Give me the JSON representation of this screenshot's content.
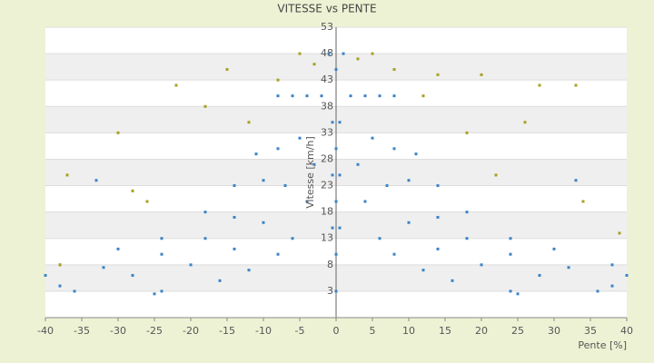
{
  "chart_data": {
    "type": "scatter",
    "title": "VITESSE vs PENTE",
    "x_label": "Pente [%]",
    "y_label": "Vitesse [km/h]",
    "xlim": [
      -40,
      40
    ],
    "ylim": [
      -2,
      53
    ],
    "xticks": [
      -40,
      -35,
      -30,
      -25,
      -20,
      -15,
      -10,
      -5,
      0,
      5,
      10,
      15,
      20,
      25,
      30,
      35,
      40
    ],
    "yticks": [
      3,
      8,
      13,
      18,
      23,
      28,
      33,
      38,
      43,
      48,
      53
    ],
    "grid": true,
    "bands": true,
    "series": [
      {
        "color": "#3b83c8",
        "x": [
          2,
          3,
          4,
          6,
          8,
          12,
          16,
          24,
          4,
          5,
          7,
          10,
          14,
          20,
          28,
          38,
          6,
          8,
          10,
          14,
          18,
          24,
          32,
          40,
          8,
          11,
          14,
          18,
          24,
          30,
          38,
          -2,
          -3,
          -4,
          -6,
          -8,
          -12,
          -16,
          -24,
          -4,
          -5,
          -7,
          -10,
          -14,
          -20,
          -28,
          -38,
          -6,
          -8,
          -10,
          -14,
          -18,
          -24,
          -32,
          -40,
          -8,
          -11,
          -14,
          -18,
          -24,
          -30,
          -38,
          0,
          0,
          0,
          0,
          0,
          0.5,
          0.5,
          0.5,
          -0.5,
          -0.5,
          -0.5,
          1,
          -1,
          36,
          -36,
          -25,
          25,
          -33,
          33
        ],
        "y": [
          40,
          27,
          20,
          13,
          10,
          7,
          5,
          3,
          40,
          32,
          23,
          16,
          11,
          8,
          6,
          4,
          40,
          30,
          24,
          17,
          13,
          10,
          7.5,
          6,
          40,
          29,
          23,
          18,
          13,
          11,
          8,
          40,
          27,
          20,
          13,
          10,
          7,
          5,
          3,
          40,
          32,
          23,
          16,
          11,
          8,
          6,
          4,
          40,
          30,
          24,
          17,
          13,
          10,
          7.5,
          6,
          40,
          29,
          23,
          18,
          13,
          11,
          8,
          3,
          10,
          20,
          30,
          45,
          15,
          25,
          35,
          15,
          25,
          35,
          48,
          48,
          3,
          3,
          2.5,
          2.5,
          24,
          24
        ]
      },
      {
        "color": "#a8a020",
        "x": [
          -37,
          -30,
          -22,
          -15,
          -8,
          -5,
          5,
          8,
          14,
          20,
          28,
          33,
          22,
          -26,
          34,
          39,
          -38,
          12,
          -12,
          18,
          -18,
          26,
          -28,
          3,
          -3
        ],
        "y": [
          25,
          33,
          42,
          45,
          43,
          48,
          48,
          45,
          44,
          44,
          42,
          42,
          25,
          20,
          20,
          14,
          8,
          40,
          35,
          33,
          38,
          35,
          22,
          47,
          46
        ]
      }
    ]
  }
}
